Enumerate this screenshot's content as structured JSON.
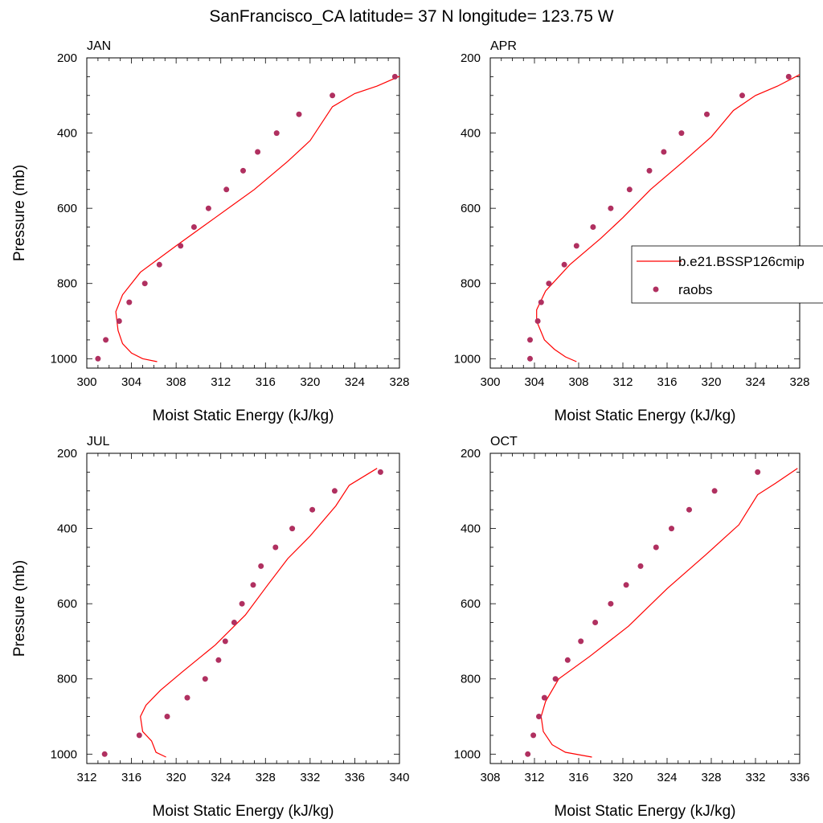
{
  "figure_title": "SanFrancisco_CA  latitude= 37 N longitude= 123.75 W",
  "legend": {
    "entries": [
      {
        "label": "b.e21.BSSP126cmip",
        "kind": "line",
        "color": "#ff0000"
      },
      {
        "label": "raobs",
        "kind": "marker",
        "color": "#b03060"
      }
    ],
    "placement": "right, beside APR panel"
  },
  "colors": {
    "model_line": "#ff0000",
    "raobs_marker": "#b03060",
    "axis": "#000000"
  },
  "chart_data": [
    {
      "type": "line",
      "panel_label": "JAN",
      "xlabel": "Moist Static Energy (kJ/kg)",
      "ylabel": "Pressure (mb)",
      "xlim": [
        300,
        328
      ],
      "ylim": [
        1025,
        200
      ],
      "xticks": [
        "300",
        "304",
        "308",
        "312",
        "316",
        "320",
        "324",
        "328"
      ],
      "yticks": [
        "200",
        "400",
        "600",
        "800",
        "1000"
      ],
      "y_inverted": true,
      "series": [
        {
          "name": "b.e21.BSSP126cmip",
          "style": "line",
          "points": [
            [
              306.3,
              1008
            ],
            [
              305.0,
              1000
            ],
            [
              304.0,
              985
            ],
            [
              303.2,
              960
            ],
            [
              302.8,
              925
            ],
            [
              302.6,
              875
            ],
            [
              303.2,
              830
            ],
            [
              304.8,
              770
            ],
            [
              308.0,
              700
            ],
            [
              311.5,
              625
            ],
            [
              315.0,
              550
            ],
            [
              318.0,
              475
            ],
            [
              320.0,
              420
            ],
            [
              322.0,
              330
            ],
            [
              324.0,
              295
            ],
            [
              326.0,
              275
            ],
            [
              328.7,
              240
            ]
          ]
        },
        {
          "name": "raobs",
          "style": "marker",
          "points": [
            [
              301.0,
              1000
            ],
            [
              301.7,
              950
            ],
            [
              302.9,
              900
            ],
            [
              303.8,
              850
            ],
            [
              305.2,
              800
            ],
            [
              306.5,
              750
            ],
            [
              308.4,
              700
            ],
            [
              309.6,
              650
            ],
            [
              310.9,
              600
            ],
            [
              312.5,
              550
            ],
            [
              314.0,
              500
            ],
            [
              315.3,
              450
            ],
            [
              317.0,
              400
            ],
            [
              319.0,
              350
            ],
            [
              322.0,
              300
            ],
            [
              327.6,
              250
            ]
          ]
        }
      ]
    },
    {
      "type": "line",
      "panel_label": "APR",
      "xlabel": "Moist Static Energy (kJ/kg)",
      "ylabel": "",
      "xlim": [
        300,
        328
      ],
      "ylim": [
        1025,
        200
      ],
      "xticks": [
        "300",
        "304",
        "308",
        "312",
        "316",
        "320",
        "324",
        "328"
      ],
      "yticks": [
        "200",
        "400",
        "600",
        "800",
        "1000"
      ],
      "y_inverted": true,
      "series": [
        {
          "name": "b.e21.BSSP126cmip",
          "style": "line",
          "points": [
            [
              307.8,
              1008
            ],
            [
              306.8,
              995
            ],
            [
              305.8,
              975
            ],
            [
              304.9,
              950
            ],
            [
              304.2,
              900
            ],
            [
              304.2,
              870
            ],
            [
              305.0,
              820
            ],
            [
              307.2,
              750
            ],
            [
              310.0,
              680
            ],
            [
              312.0,
              625
            ],
            [
              314.5,
              550
            ],
            [
              317.5,
              475
            ],
            [
              320.0,
              410
            ],
            [
              322.0,
              340
            ],
            [
              324.0,
              300
            ],
            [
              326.0,
              275
            ],
            [
              328.3,
              240
            ]
          ]
        },
        {
          "name": "raobs",
          "style": "marker",
          "points": [
            [
              303.6,
              1000
            ],
            [
              303.6,
              950
            ],
            [
              304.3,
              900
            ],
            [
              304.6,
              850
            ],
            [
              305.3,
              800
            ],
            [
              306.7,
              750
            ],
            [
              307.8,
              700
            ],
            [
              309.3,
              650
            ],
            [
              310.9,
              600
            ],
            [
              312.6,
              550
            ],
            [
              314.4,
              500
            ],
            [
              315.7,
              450
            ],
            [
              317.3,
              400
            ],
            [
              319.6,
              350
            ],
            [
              322.8,
              300
            ],
            [
              327.0,
              250
            ]
          ]
        }
      ]
    },
    {
      "type": "line",
      "panel_label": "JUL",
      "xlabel": "Moist Static Energy (kJ/kg)",
      "ylabel": "Pressure (mb)",
      "xlim": [
        312,
        340
      ],
      "ylim": [
        1025,
        200
      ],
      "xticks": [
        "312",
        "316",
        "320",
        "324",
        "328",
        "332",
        "336",
        "340"
      ],
      "yticks": [
        "200",
        "400",
        "600",
        "800",
        "1000"
      ],
      "y_inverted": true,
      "series": [
        {
          "name": "b.e21.BSSP126cmip",
          "style": "line",
          "points": [
            [
              319.1,
              1008
            ],
            [
              318.2,
              995
            ],
            [
              317.8,
              965
            ],
            [
              317.0,
              940
            ],
            [
              316.8,
              900
            ],
            [
              317.3,
              870
            ],
            [
              318.6,
              830
            ],
            [
              320.6,
              780
            ],
            [
              323.5,
              710
            ],
            [
              326.2,
              630
            ],
            [
              328.2,
              550
            ],
            [
              330.0,
              480
            ],
            [
              332.0,
              420
            ],
            [
              334.3,
              340
            ],
            [
              335.5,
              285
            ],
            [
              338.0,
              240
            ]
          ]
        },
        {
          "name": "raobs",
          "style": "marker",
          "points": [
            [
              313.6,
              1000
            ],
            [
              316.7,
              950
            ],
            [
              319.2,
              900
            ],
            [
              321.0,
              850
            ],
            [
              322.6,
              800
            ],
            [
              323.8,
              750
            ],
            [
              324.4,
              700
            ],
            [
              325.2,
              650
            ],
            [
              325.9,
              600
            ],
            [
              326.9,
              550
            ],
            [
              327.6,
              500
            ],
            [
              328.9,
              450
            ],
            [
              330.4,
              400
            ],
            [
              332.2,
              350
            ],
            [
              334.2,
              300
            ],
            [
              338.3,
              250
            ]
          ]
        }
      ]
    },
    {
      "type": "line",
      "panel_label": "OCT",
      "xlabel": "Moist Static Energy (kJ/kg)",
      "ylabel": "",
      "xlim": [
        308,
        336
      ],
      "ylim": [
        1025,
        200
      ],
      "xticks": [
        "308",
        "312",
        "316",
        "320",
        "324",
        "328",
        "332",
        "336"
      ],
      "yticks": [
        "200",
        "400",
        "600",
        "800",
        "1000"
      ],
      "y_inverted": true,
      "series": [
        {
          "name": "b.e21.BSSP126cmip",
          "style": "line",
          "points": [
            [
              317.2,
              1008
            ],
            [
              314.8,
              995
            ],
            [
              313.6,
              975
            ],
            [
              312.8,
              940
            ],
            [
              312.6,
              900
            ],
            [
              313.0,
              860
            ],
            [
              314.2,
              800
            ],
            [
              317.0,
              740
            ],
            [
              320.5,
              660
            ],
            [
              324.0,
              560
            ],
            [
              327.5,
              470
            ],
            [
              330.5,
              390
            ],
            [
              332.2,
              310
            ],
            [
              333.8,
              280
            ],
            [
              335.8,
              240
            ]
          ]
        },
        {
          "name": "raobs",
          "style": "marker",
          "points": [
            [
              311.4,
              1000
            ],
            [
              311.9,
              950
            ],
            [
              312.4,
              900
            ],
            [
              312.9,
              850
            ],
            [
              313.9,
              800
            ],
            [
              315.0,
              750
            ],
            [
              316.2,
              700
            ],
            [
              317.5,
              650
            ],
            [
              318.9,
              600
            ],
            [
              320.3,
              550
            ],
            [
              321.6,
              500
            ],
            [
              323.0,
              450
            ],
            [
              324.4,
              400
            ],
            [
              326.0,
              350
            ],
            [
              328.3,
              300
            ],
            [
              332.2,
              250
            ]
          ]
        }
      ]
    }
  ]
}
